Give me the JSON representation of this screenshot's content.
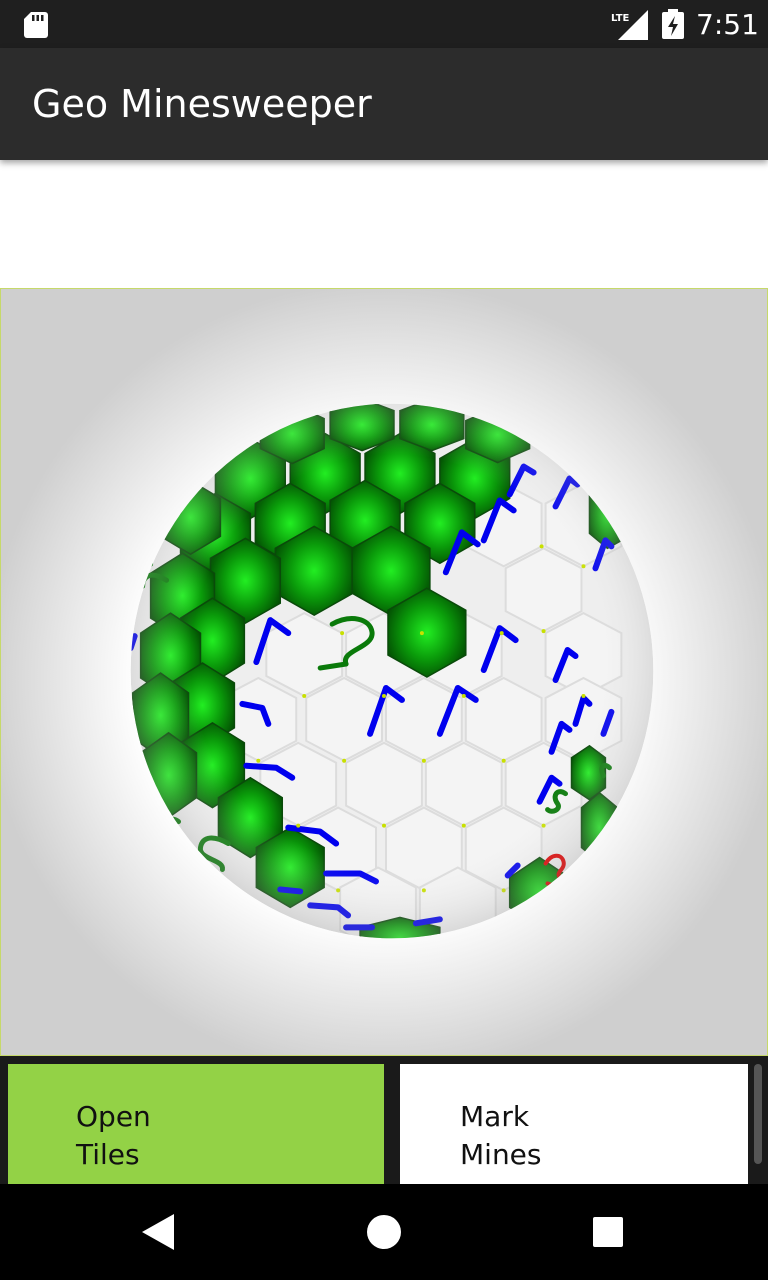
{
  "status_bar": {
    "time": "7:51",
    "network": "LTE",
    "icons": [
      "sd-card-icon",
      "lte-signal-icon",
      "battery-charging-icon"
    ]
  },
  "app_bar": {
    "title": "Geo Minesweeper"
  },
  "board": {
    "colors": {
      "unopened": "#0a8a0a",
      "opened": "#f2f2f2",
      "number_1": "#0000ee",
      "number_2": "#0a7a0a",
      "number_3": "#e00000",
      "background": "#d0d0d0"
    },
    "numbers": [
      "1",
      "2",
      "3"
    ]
  },
  "mode_buttons": {
    "open": {
      "line1": "Open",
      "line2": "Tiles",
      "selected": true
    },
    "mark": {
      "line1": "Mark",
      "line2": "Mines",
      "selected": false
    }
  },
  "nav_bar": {
    "icons": [
      "back-icon",
      "home-icon",
      "recents-icon"
    ]
  }
}
